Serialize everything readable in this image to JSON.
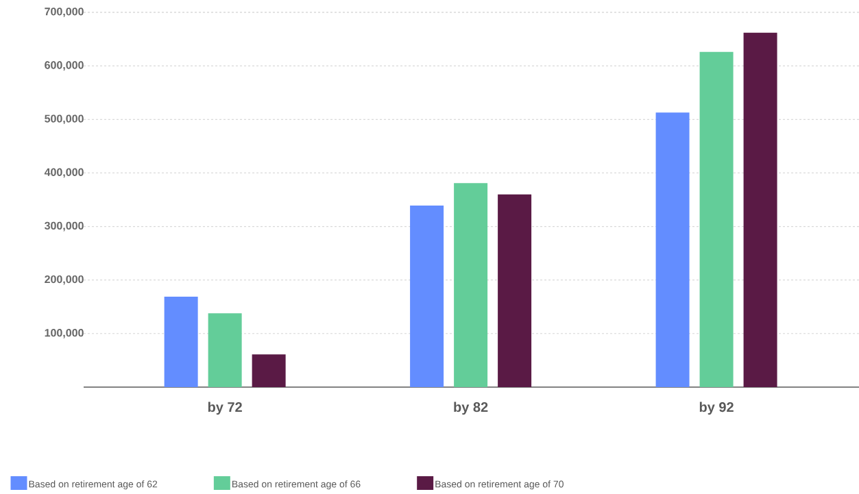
{
  "chart_data": {
    "type": "bar",
    "categories": [
      "by 72",
      "by 82",
      "by 92"
    ],
    "series": [
      {
        "name": "Based on retirement age of 62",
        "color": "#638dff",
        "values": [
          169000,
          339000,
          513000
        ]
      },
      {
        "name": "Based on retirement age of 66",
        "color": "#63cd99",
        "values": [
          138000,
          381000,
          626000
        ]
      },
      {
        "name": "Based on retirement age of 70",
        "color": "#5a1a45",
        "values": [
          61000,
          360000,
          662000
        ]
      }
    ],
    "ylim": [
      0,
      700000
    ],
    "yticks": [
      {
        "value": 100000,
        "label": "100,000"
      },
      {
        "value": 200000,
        "label": "200,000"
      },
      {
        "value": 300000,
        "label": "300,000"
      },
      {
        "value": 400000,
        "label": "400,000"
      },
      {
        "value": 500000,
        "label": "500,000"
      },
      {
        "value": 600000,
        "label": "600,000"
      },
      {
        "value": 700000,
        "label": "700,000"
      }
    ],
    "grid": "y",
    "legend": "bottom"
  }
}
